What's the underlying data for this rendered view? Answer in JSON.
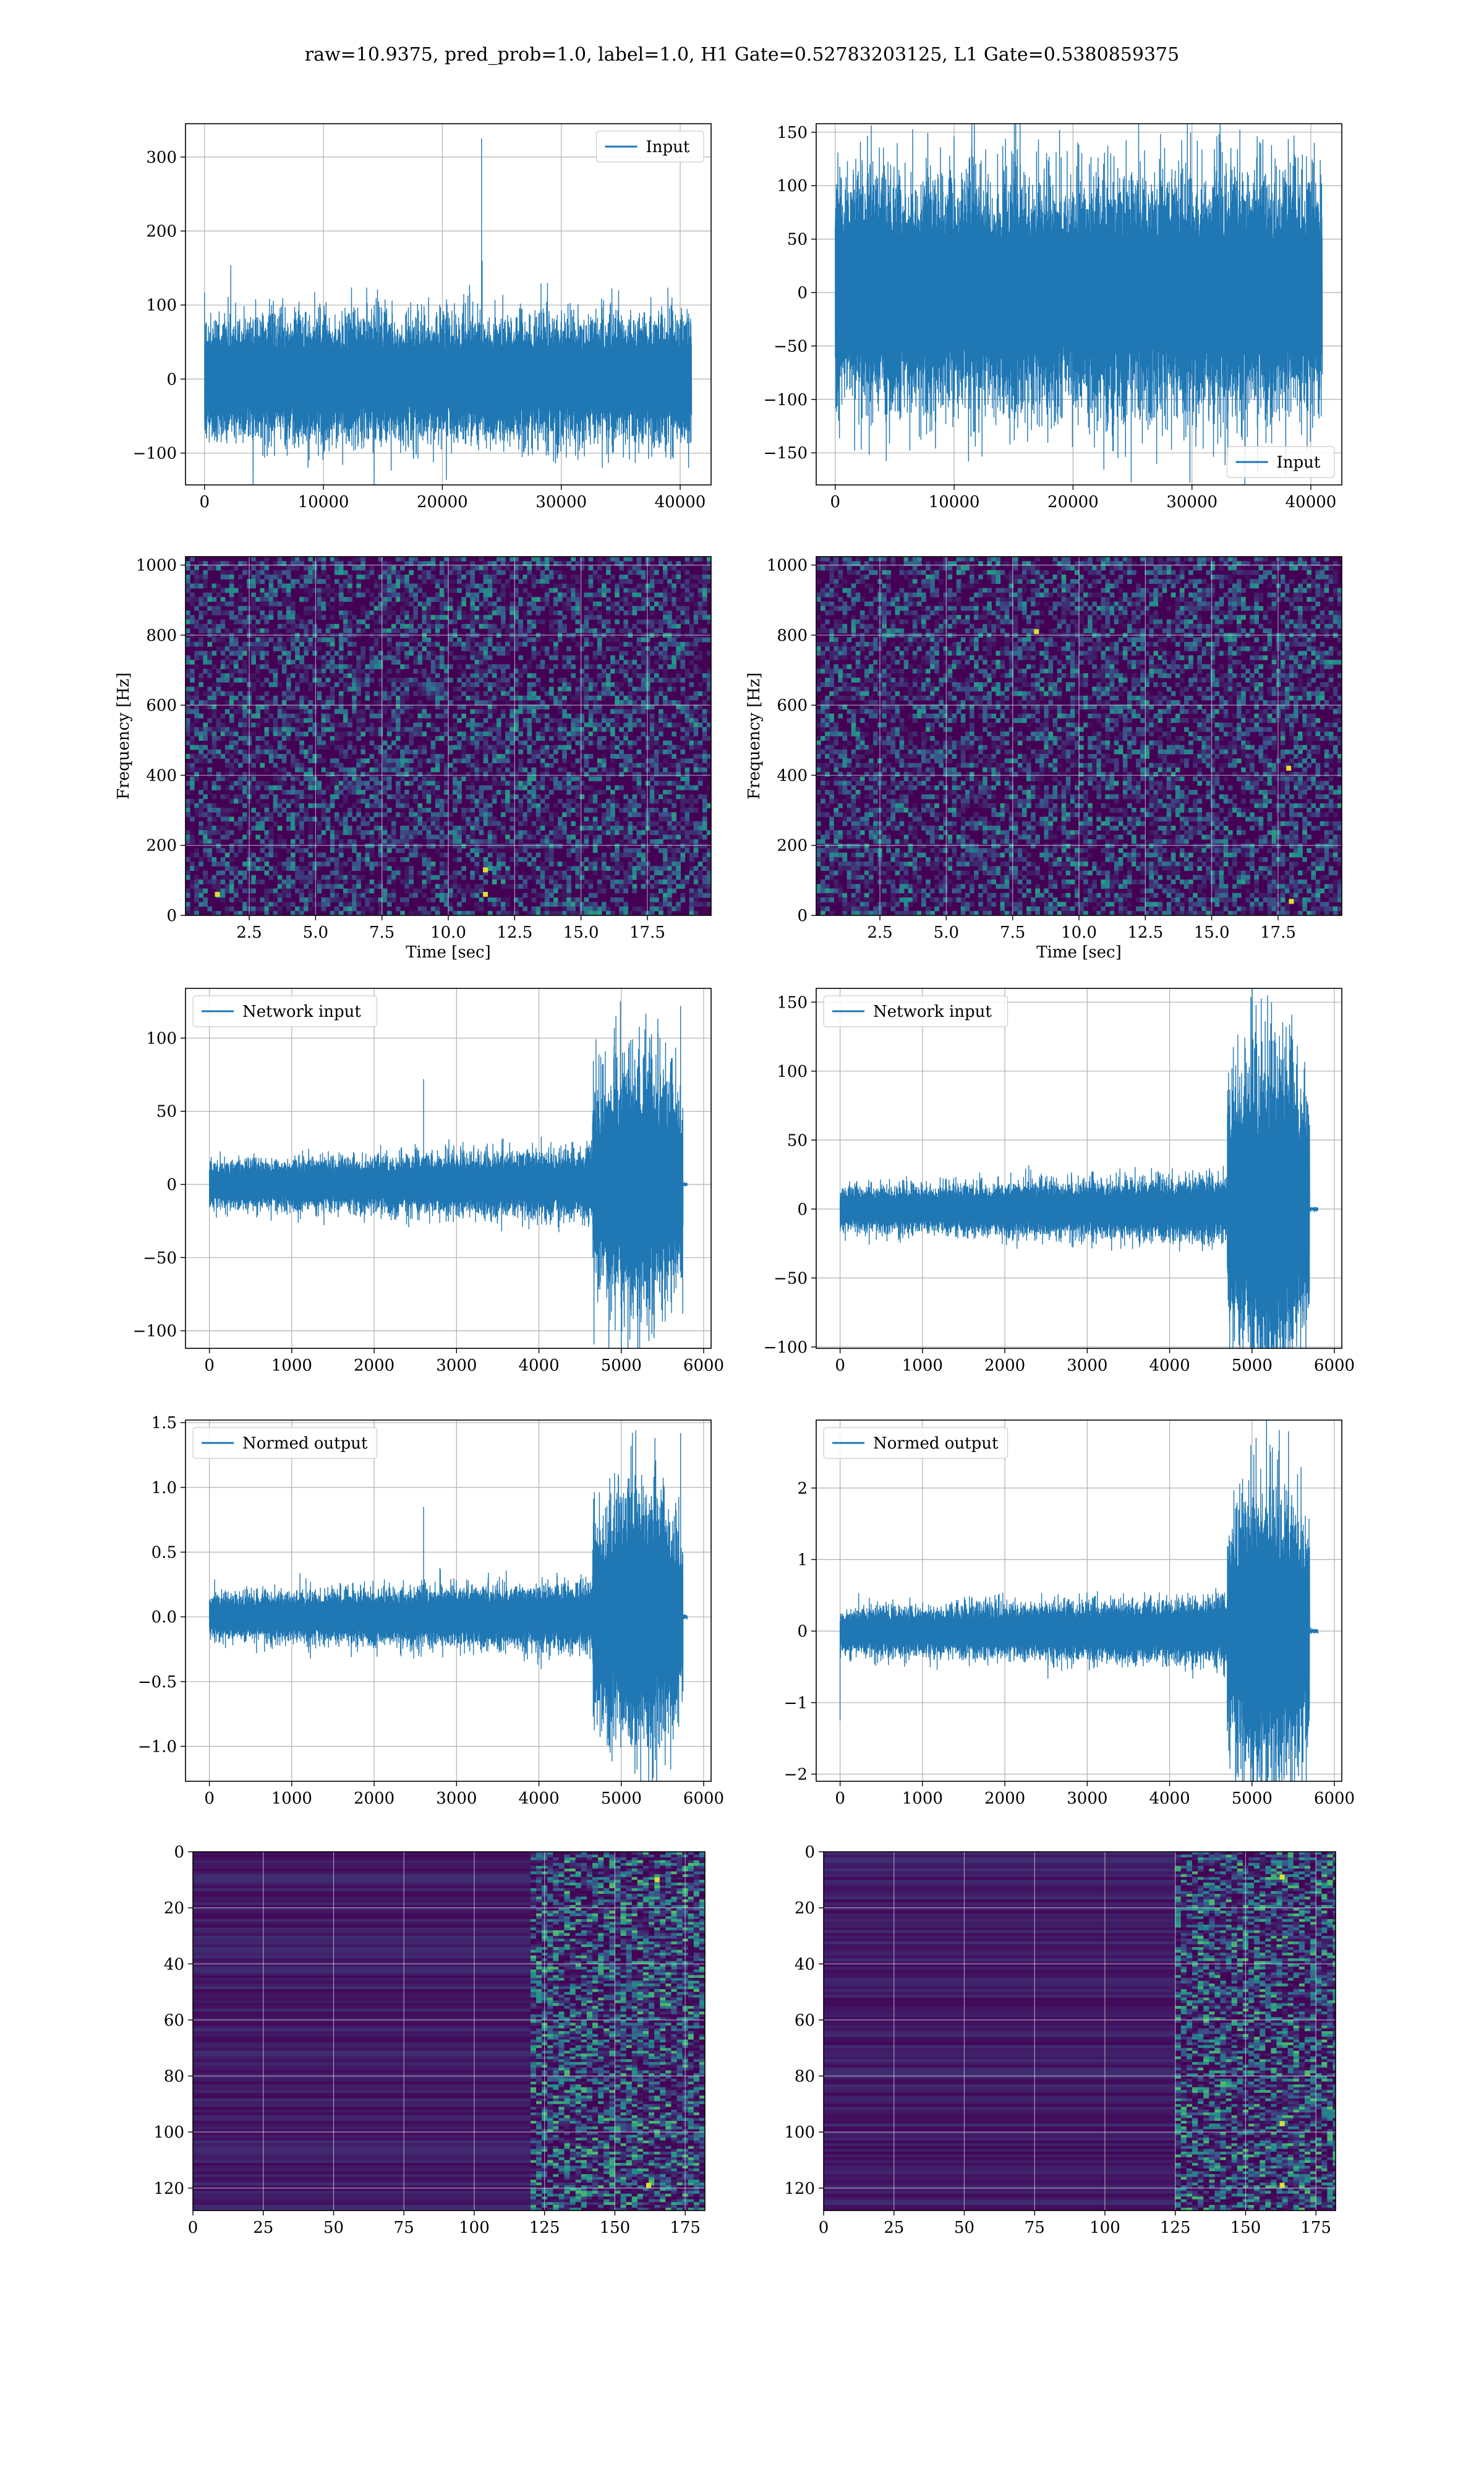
{
  "figure": {
    "suptitle": "raw=10.9375, pred_prob=1.0, label=1.0, H1 Gate=0.52783203125, L1 Gate=0.5380859375"
  },
  "colors": {
    "line": "#1f77b4",
    "viridis_dark": "#440154",
    "grid": "#b0b0b0"
  },
  "chart_data": [
    {
      "id": "h1-input",
      "type": "line",
      "series": [
        {
          "name": "Input",
          "length": 40960,
          "baseline_amplitude": 65,
          "spikes": [
            {
              "x": 23300,
              "y": 325
            },
            {
              "x": 23350,
              "y": 160
            },
            {
              "x": 21800,
              "y": 115
            }
          ]
        }
      ],
      "xlim": [
        -1600,
        42600
      ],
      "ylim": [
        -143,
        345
      ],
      "xticks": [
        0,
        10000,
        20000,
        30000,
        40000
      ],
      "yticks": [
        -100,
        0,
        100,
        200,
        300
      ],
      "legend": "top-right",
      "grid": true
    },
    {
      "id": "l1-input",
      "type": "line",
      "series": [
        {
          "name": "Input",
          "length": 40960,
          "baseline_amplitude": 85
        }
      ],
      "xlim": [
        -1600,
        42600
      ],
      "ylim": [
        -180,
        158
      ],
      "xticks": [
        0,
        10000,
        20000,
        30000,
        40000
      ],
      "yticks": [
        -150,
        -100,
        -50,
        0,
        50,
        100,
        150
      ],
      "legend": "bottom-right",
      "grid": true
    },
    {
      "id": "h1-spectrogram",
      "type": "heatmap",
      "xlim": [
        0.1,
        19.9
      ],
      "ylim": [
        0,
        1024
      ],
      "xticks": [
        2.5,
        5.0,
        7.5,
        10.0,
        12.5,
        15.0,
        17.5
      ],
      "yticks": [
        0,
        200,
        400,
        600,
        800,
        1000
      ],
      "xlabel": "Time [sec]",
      "ylabel": "Frequency [Hz]",
      "grid": true,
      "highlights": [
        {
          "x": 11.4,
          "y": 60
        },
        {
          "x": 11.4,
          "y": 130
        },
        {
          "x": 1.3,
          "y": 60
        }
      ]
    },
    {
      "id": "l1-spectrogram",
      "type": "heatmap",
      "xlim": [
        0.1,
        19.9
      ],
      "ylim": [
        0,
        1024
      ],
      "xticks": [
        2.5,
        5.0,
        7.5,
        10.0,
        12.5,
        15.0,
        17.5
      ],
      "yticks": [
        0,
        200,
        400,
        600,
        800,
        1000
      ],
      "xlabel": "Time [sec]",
      "ylabel": "Frequency [Hz]",
      "grid": true,
      "highlights": [
        {
          "x": 8.4,
          "y": 810
        },
        {
          "x": 17.9,
          "y": 420
        },
        {
          "x": 18.0,
          "y": 40
        }
      ]
    },
    {
      "id": "h1-network-input",
      "type": "line",
      "series": [
        {
          "name": "Network input",
          "length": 5800,
          "burst_start": 4650,
          "burst_end": 5750,
          "baseline_amplitude": 15,
          "burst_amplitude": 70,
          "spikes": [
            {
              "x": 2600,
              "y": 72
            },
            {
              "x": 5720,
              "y": 122
            }
          ]
        }
      ],
      "xlim": [
        -290,
        6090
      ],
      "ylim": [
        -112,
        134
      ],
      "xticks": [
        0,
        1000,
        2000,
        3000,
        4000,
        5000,
        6000
      ],
      "yticks": [
        -100,
        -50,
        0,
        50,
        100
      ],
      "legend": "top-left",
      "grid": true
    },
    {
      "id": "l1-network-input",
      "type": "line",
      "series": [
        {
          "name": "Network input",
          "length": 5800,
          "burst_start": 4700,
          "burst_end": 5700,
          "baseline_amplitude": 15,
          "burst_amplitude": 95,
          "spikes": [
            {
              "x": 5050,
              "y": 148
            }
          ]
        }
      ],
      "xlim": [
        -290,
        6090
      ],
      "ylim": [
        -101,
        160
      ],
      "xticks": [
        0,
        1000,
        2000,
        3000,
        4000,
        5000,
        6000
      ],
      "yticks": [
        -100,
        -50,
        0,
        50,
        100,
        150
      ],
      "legend": "top-left",
      "grid": true
    },
    {
      "id": "h1-normed-output",
      "type": "line",
      "series": [
        {
          "name": "Normed output",
          "length": 5800,
          "burst_start": 4650,
          "burst_end": 5750,
          "baseline_amplitude": 0.17,
          "burst_amplitude": 0.8,
          "spikes": [
            {
              "x": 2600,
              "y": 0.85
            },
            {
              "x": 5720,
              "y": 1.42
            }
          ]
        }
      ],
      "xlim": [
        -290,
        6090
      ],
      "ylim": [
        -1.27,
        1.52
      ],
      "xticks": [
        0,
        1000,
        2000,
        3000,
        4000,
        5000,
        6000
      ],
      "yticks": [
        -1.0,
        -0.5,
        0.0,
        0.5,
        1.0,
        1.5
      ],
      "legend": "top-left",
      "grid": true
    },
    {
      "id": "l1-normed-output",
      "type": "line",
      "series": [
        {
          "name": "Normed output",
          "length": 5800,
          "burst_start": 4700,
          "burst_end": 5700,
          "baseline_amplitude": 0.3,
          "burst_amplitude": 1.7,
          "spikes": [
            {
              "x": 5050,
              "y": 2.7
            },
            {
              "x": 0,
              "y": -1.25
            }
          ]
        }
      ],
      "xlim": [
        -290,
        6090
      ],
      "ylim": [
        -2.1,
        2.95
      ],
      "xticks": [
        0,
        1000,
        2000,
        3000,
        4000,
        5000,
        6000
      ],
      "yticks": [
        -2,
        -1,
        0,
        1,
        2
      ],
      "legend": "top-left",
      "grid": true
    },
    {
      "id": "h1-feature-map",
      "type": "heatmap",
      "xlim": [
        0,
        182
      ],
      "ylim": [
        128,
        0
      ],
      "xticks": [
        0,
        25,
        50,
        75,
        100,
        125,
        150,
        175
      ],
      "yticks": [
        0,
        20,
        40,
        60,
        80,
        100,
        120
      ],
      "grid": true,
      "active_from": 120,
      "highlights": [
        {
          "x": 162,
          "y": 119
        },
        {
          "x": 165,
          "y": 10
        }
      ]
    },
    {
      "id": "l1-feature-map",
      "type": "heatmap",
      "xlim": [
        0,
        182
      ],
      "ylim": [
        128,
        0
      ],
      "xticks": [
        0,
        25,
        50,
        75,
        100,
        125,
        150,
        175
      ],
      "yticks": [
        0,
        20,
        40,
        60,
        80,
        100,
        120
      ],
      "grid": true,
      "active_from": 125,
      "highlights": [
        {
          "x": 163,
          "y": 9
        },
        {
          "x": 163,
          "y": 119
        },
        {
          "x": 163,
          "y": 97
        }
      ]
    }
  ]
}
